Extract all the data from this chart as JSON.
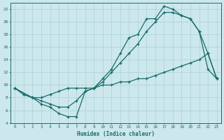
{
  "xlabel": "Humidex (Indice chaleur)",
  "bg_color": "#cce8ec",
  "grid_color": "#b0d4d8",
  "line_color": "#1a6b6b",
  "xlim": [
    -0.5,
    23.5
  ],
  "ylim": [
    4,
    23
  ],
  "xticks": [
    0,
    1,
    2,
    3,
    4,
    5,
    6,
    7,
    8,
    9,
    10,
    11,
    12,
    13,
    14,
    15,
    16,
    17,
    18,
    19,
    20,
    21,
    22,
    23
  ],
  "yticks": [
    4,
    6,
    8,
    10,
    12,
    14,
    16,
    18,
    20,
    22
  ],
  "line1_x": [
    0,
    1,
    2,
    3,
    4,
    5,
    6,
    7,
    8,
    9,
    10,
    11,
    12,
    13,
    14,
    15,
    16,
    17,
    18,
    19,
    20,
    21,
    22,
    23
  ],
  "line1_y": [
    9.5,
    8.5,
    8.0,
    7.0,
    6.5,
    5.5,
    5.0,
    5.0,
    9.0,
    9.5,
    11.0,
    12.5,
    15.0,
    17.5,
    18.0,
    20.5,
    20.5,
    22.5,
    22.0,
    21.0,
    20.5,
    18.5,
    12.5,
    11.0
  ],
  "line2_x": [
    0,
    2,
    3,
    4,
    5,
    6,
    7,
    8,
    9,
    10,
    11,
    12,
    13,
    14,
    15,
    16,
    17,
    18,
    19,
    20,
    21,
    22,
    23
  ],
  "line2_y": [
    9.5,
    8.0,
    8.0,
    8.5,
    9.0,
    9.5,
    9.5,
    9.5,
    9.5,
    10.0,
    10.0,
    10.5,
    10.5,
    11.0,
    11.0,
    11.5,
    12.0,
    12.5,
    13.0,
    13.5,
    14.0,
    15.0,
    11.0
  ],
  "line3_x": [
    0,
    1,
    2,
    3,
    4,
    5,
    6,
    7,
    8,
    9,
    10,
    11,
    12,
    13,
    14,
    15,
    16,
    17,
    18,
    19,
    20,
    21,
    22,
    23
  ],
  "line3_y": [
    9.5,
    8.5,
    8.0,
    7.5,
    7.0,
    6.5,
    6.5,
    7.5,
    9.0,
    9.5,
    10.5,
    12.0,
    13.5,
    15.0,
    16.5,
    18.5,
    20.0,
    21.5,
    21.5,
    21.0,
    20.5,
    18.5,
    15.0,
    11.0
  ]
}
